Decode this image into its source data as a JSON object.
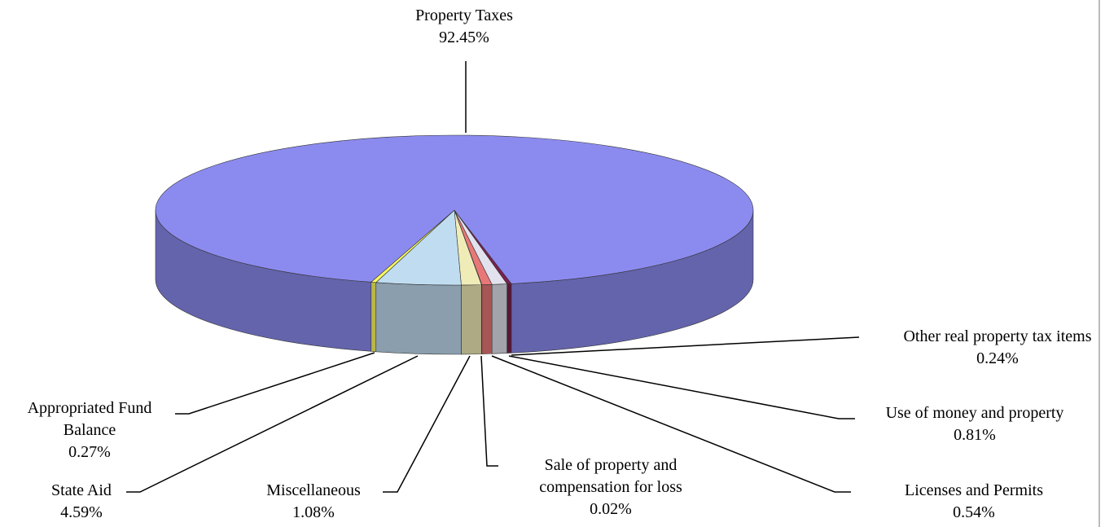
{
  "chart_data": {
    "type": "pie3d",
    "categories": [
      "Other real property tax items",
      "Use of money and property",
      "Licenses and Permits",
      "Sale of property and compensation for loss",
      "Miscellaneous",
      "State Aid",
      "Appropriated Fund Balance",
      "Property Taxes"
    ],
    "values": [
      0.24,
      0.81,
      0.54,
      0.02,
      1.08,
      4.59,
      0.27,
      92.45
    ],
    "value_labels": [
      "0.24%",
      "0.81%",
      "0.54%",
      "0.02%",
      "1.08%",
      "4.59%",
      "0.27%",
      "92.45%"
    ],
    "colors": [
      "#7a2050",
      "#e2e2ee",
      "#e87878",
      "#c8c8c8",
      "#f0ecb8",
      "#c0dcf0",
      "#ffff60",
      "#8b8bef"
    ]
  }
}
